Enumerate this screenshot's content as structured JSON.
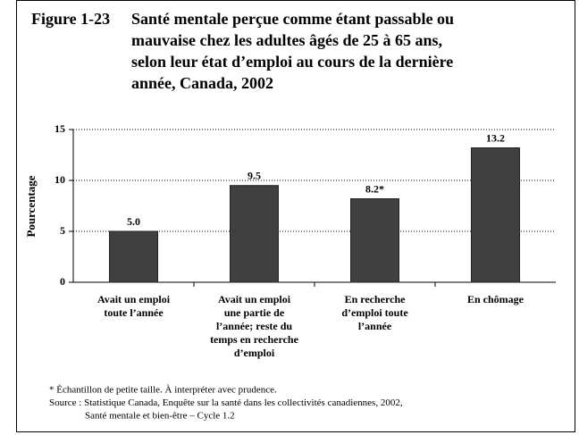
{
  "chart_data": {
    "type": "bar",
    "figure_label": "Figure 1-23",
    "title_lines": [
      "Santé mentale perçue comme étant passable ou",
      "mauvaise chez les adultes âgés de 25 à 65 ans,",
      "selon leur état d’emploi au cours de la dernière",
      "année, Canada, 2002"
    ],
    "ylabel": "Pourcentage",
    "categories": [
      [
        "Avait un emploi",
        "toute l’année"
      ],
      [
        "Avait un emploi",
        "une partie de",
        "l’année; reste du",
        "temps en recherche",
        "d’emploi"
      ],
      [
        "En recherche",
        "d’emploi toute",
        "l’année"
      ],
      [
        "En chômage"
      ]
    ],
    "values": [
      5.0,
      9.5,
      8.2,
      13.2
    ],
    "value_labels": [
      "5.0",
      "9.5",
      "8.2*",
      "13.2"
    ],
    "color": "#404040",
    "ylim": [
      0,
      15
    ],
    "yticks": [
      0,
      5,
      10,
      15
    ],
    "grid": true,
    "footnotes": [
      "* Échantillon de petite taille. À interpréter avec prudence.",
      "Source :  Statistique Canada, Enquête sur la santé dans les collectivités canadiennes, 2002,",
      "Santé mentale et bien-être – Cycle 1.2"
    ]
  }
}
